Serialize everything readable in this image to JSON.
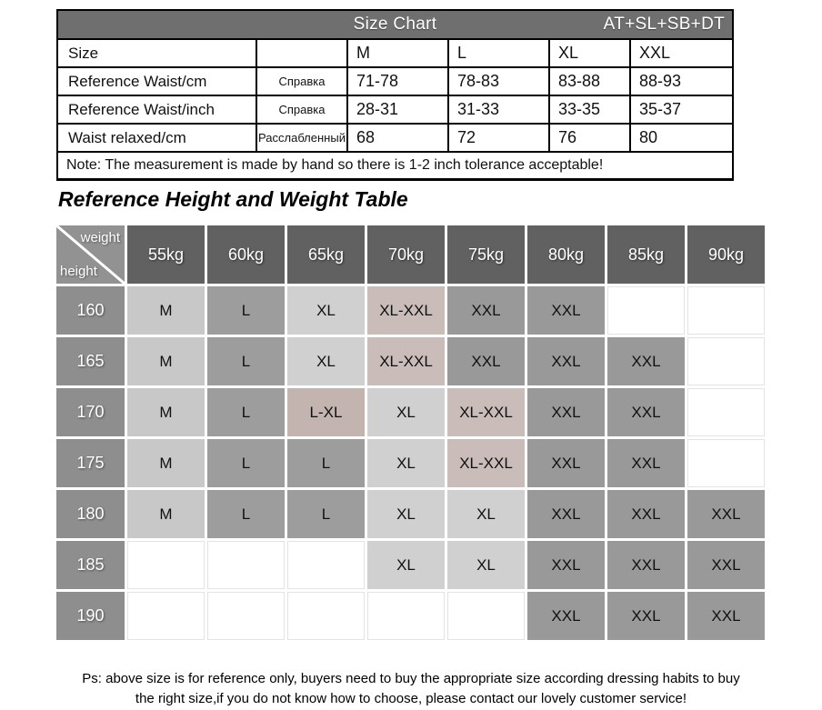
{
  "size_chart": {
    "header": {
      "title": "Size Chart",
      "code": "AT+SL+SB+DT"
    },
    "size_label": "Size",
    "columns": [
      "M",
      "L",
      "XL",
      "XXL"
    ],
    "rows": [
      {
        "label": "Reference Waist/cm",
        "note_ru": "Справка",
        "values": [
          "71-78",
          "78-83",
          "83-88",
          "88-93"
        ]
      },
      {
        "label": "Reference Waist/inch",
        "note_ru": "Справка",
        "values": [
          "28-31",
          "31-33",
          "33-35",
          "35-37"
        ]
      },
      {
        "label": "Waist relaxed/cm",
        "note_ru": "Расслабленный",
        "values": [
          "68",
          "72",
          "76",
          "80"
        ]
      }
    ],
    "note": "Note: The measurement is made by hand so there is 1-2 inch tolerance acceptable!"
  },
  "hw_table": {
    "title": "Reference Height and Weight Table",
    "corner": {
      "weight": "weight",
      "height": "height"
    },
    "weights": [
      "55kg",
      "60kg",
      "65kg",
      "70kg",
      "75kg",
      "80kg",
      "85kg",
      "90kg"
    ],
    "rows": [
      {
        "height": "160",
        "cells": [
          "M",
          "L",
          "XL",
          "XL-XXL",
          "XXL",
          "XXL",
          "",
          ""
        ]
      },
      {
        "height": "165",
        "cells": [
          "M",
          "L",
          "XL",
          "XL-XXL",
          "XXL",
          "XXL",
          "XXL",
          ""
        ]
      },
      {
        "height": "170",
        "cells": [
          "M",
          "L",
          "L-XL",
          "XL",
          "XL-XXL",
          "XXL",
          "XXL",
          ""
        ]
      },
      {
        "height": "175",
        "cells": [
          "M",
          "L",
          "L",
          "XL",
          "XL-XXL",
          "XXL",
          "XXL",
          ""
        ]
      },
      {
        "height": "180",
        "cells": [
          "M",
          "L",
          "L",
          "XL",
          "XL",
          "XXL",
          "XXL",
          "XXL"
        ]
      },
      {
        "height": "185",
        "cells": [
          "",
          "",
          "",
          "XL",
          "XL",
          "XXL",
          "XXL",
          "XXL"
        ]
      },
      {
        "height": "190",
        "cells": [
          "",
          "",
          "",
          "",
          "",
          "XXL",
          "XXL",
          "XXL"
        ]
      }
    ]
  },
  "footer": {
    "line1": "Ps: above size is for reference only, buyers need to buy the appropriate size according dressing habits to buy",
    "line2": "the right size,if you do not know how to choose, please contact our lovely customer service!"
  },
  "colors": {
    "top_header_bg": "#6f6f6f",
    "weight_header_bg": "#616161",
    "height_header_bg": "#8e8e8e",
    "corner_bg": "#929292",
    "cell_colors": {
      "M": "#c8c8c8",
      "L": "#9d9d9d",
      "XL": "#d0d0d0",
      "XXL": "#999999",
      "L-XL": "#c3b4b0",
      "XL-XXL": "#cabdb9",
      "": "#ffffff"
    }
  }
}
